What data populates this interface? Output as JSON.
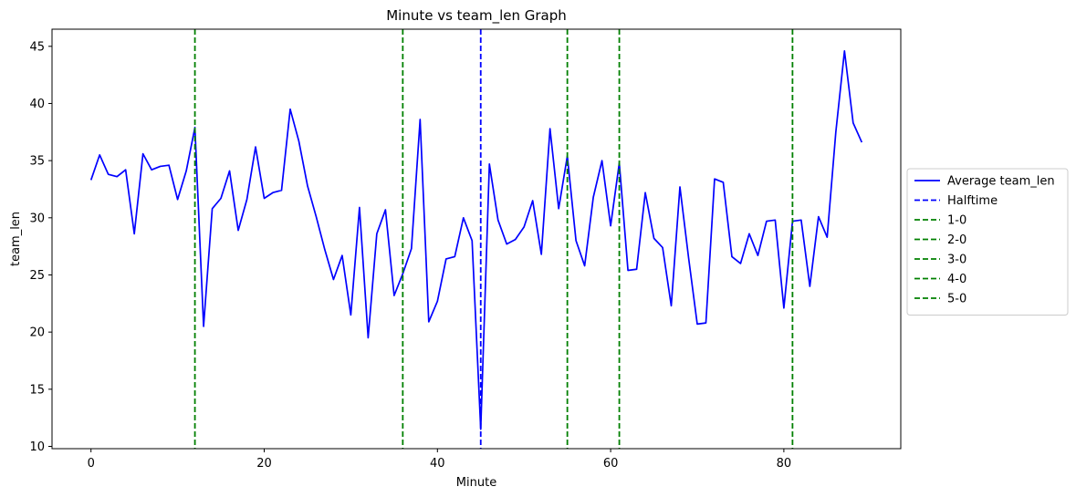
{
  "chart_data": {
    "type": "line",
    "title": "Minute vs team_len Graph",
    "xlabel": "Minute",
    "ylabel": "team_len",
    "xlim": [
      -4.5,
      93.5
    ],
    "ylim": [
      9.8,
      46.5
    ],
    "xticks": [
      0,
      20,
      40,
      60,
      80
    ],
    "yticks": [
      10,
      15,
      20,
      25,
      30,
      35,
      40,
      45
    ],
    "grid": false,
    "legend_position": "right",
    "series": [
      {
        "name": "Average team_len",
        "color": "#0000ff",
        "style": "solid",
        "x": [
          0,
          1,
          2,
          3,
          4,
          5,
          6,
          7,
          8,
          9,
          10,
          11,
          12,
          13,
          14,
          15,
          16,
          17,
          18,
          19,
          20,
          21,
          22,
          23,
          24,
          25,
          26,
          27,
          28,
          29,
          30,
          31,
          32,
          33,
          34,
          35,
          36,
          37,
          38,
          39,
          40,
          41,
          42,
          43,
          44,
          45,
          46,
          47,
          48,
          49,
          50,
          51,
          52,
          53,
          54,
          55,
          56,
          57,
          58,
          59,
          60,
          61,
          62,
          63,
          64,
          65,
          66,
          67,
          68,
          69,
          70,
          71,
          72,
          73,
          74,
          75,
          76,
          77,
          78,
          79,
          80,
          81,
          82,
          83,
          84,
          85,
          86,
          87,
          88,
          89
        ],
        "y": [
          33.3,
          35.5,
          33.8,
          33.6,
          34.2,
          28.6,
          35.6,
          34.2,
          34.5,
          34.6,
          31.6,
          34.1,
          37.9,
          20.5,
          30.8,
          31.7,
          34.1,
          28.9,
          31.6,
          36.2,
          31.7,
          32.2,
          32.4,
          39.5,
          36.7,
          32.8,
          30.1,
          27.2,
          24.6,
          26.7,
          21.5,
          30.9,
          19.5,
          28.6,
          30.7,
          23.2,
          25.1,
          27.3,
          38.6,
          20.9,
          22.7,
          26.4,
          26.6,
          30.0,
          28.0,
          11.5,
          34.7,
          29.8,
          27.7,
          28.1,
          29.2,
          31.5,
          26.8,
          37.8,
          30.8,
          35.4,
          28.0,
          25.8,
          31.8,
          35.0,
          29.3,
          34.8,
          25.4,
          25.5,
          32.2,
          28.2,
          27.4,
          22.3,
          32.7,
          26.5,
          20.7,
          20.8,
          33.4,
          33.1,
          26.6,
          26.0,
          28.6,
          26.7,
          29.7,
          29.8,
          22.1,
          29.7,
          29.8,
          24.0,
          30.1,
          28.3,
          37.5,
          44.6,
          38.3,
          36.6
        ]
      }
    ],
    "vlines": [
      {
        "name": "Halftime",
        "x": 45,
        "color": "#0000ff",
        "style": "dashed"
      },
      {
        "name": "1-0",
        "x": 12,
        "color": "#008000",
        "style": "dashed"
      },
      {
        "name": "2-0",
        "x": 36,
        "color": "#008000",
        "style": "dashed"
      },
      {
        "name": "3-0",
        "x": 55,
        "color": "#008000",
        "style": "dashed"
      },
      {
        "name": "4-0",
        "x": 61,
        "color": "#008000",
        "style": "dashed"
      },
      {
        "name": "5-0",
        "x": 81,
        "color": "#008000",
        "style": "dashed"
      }
    ]
  }
}
